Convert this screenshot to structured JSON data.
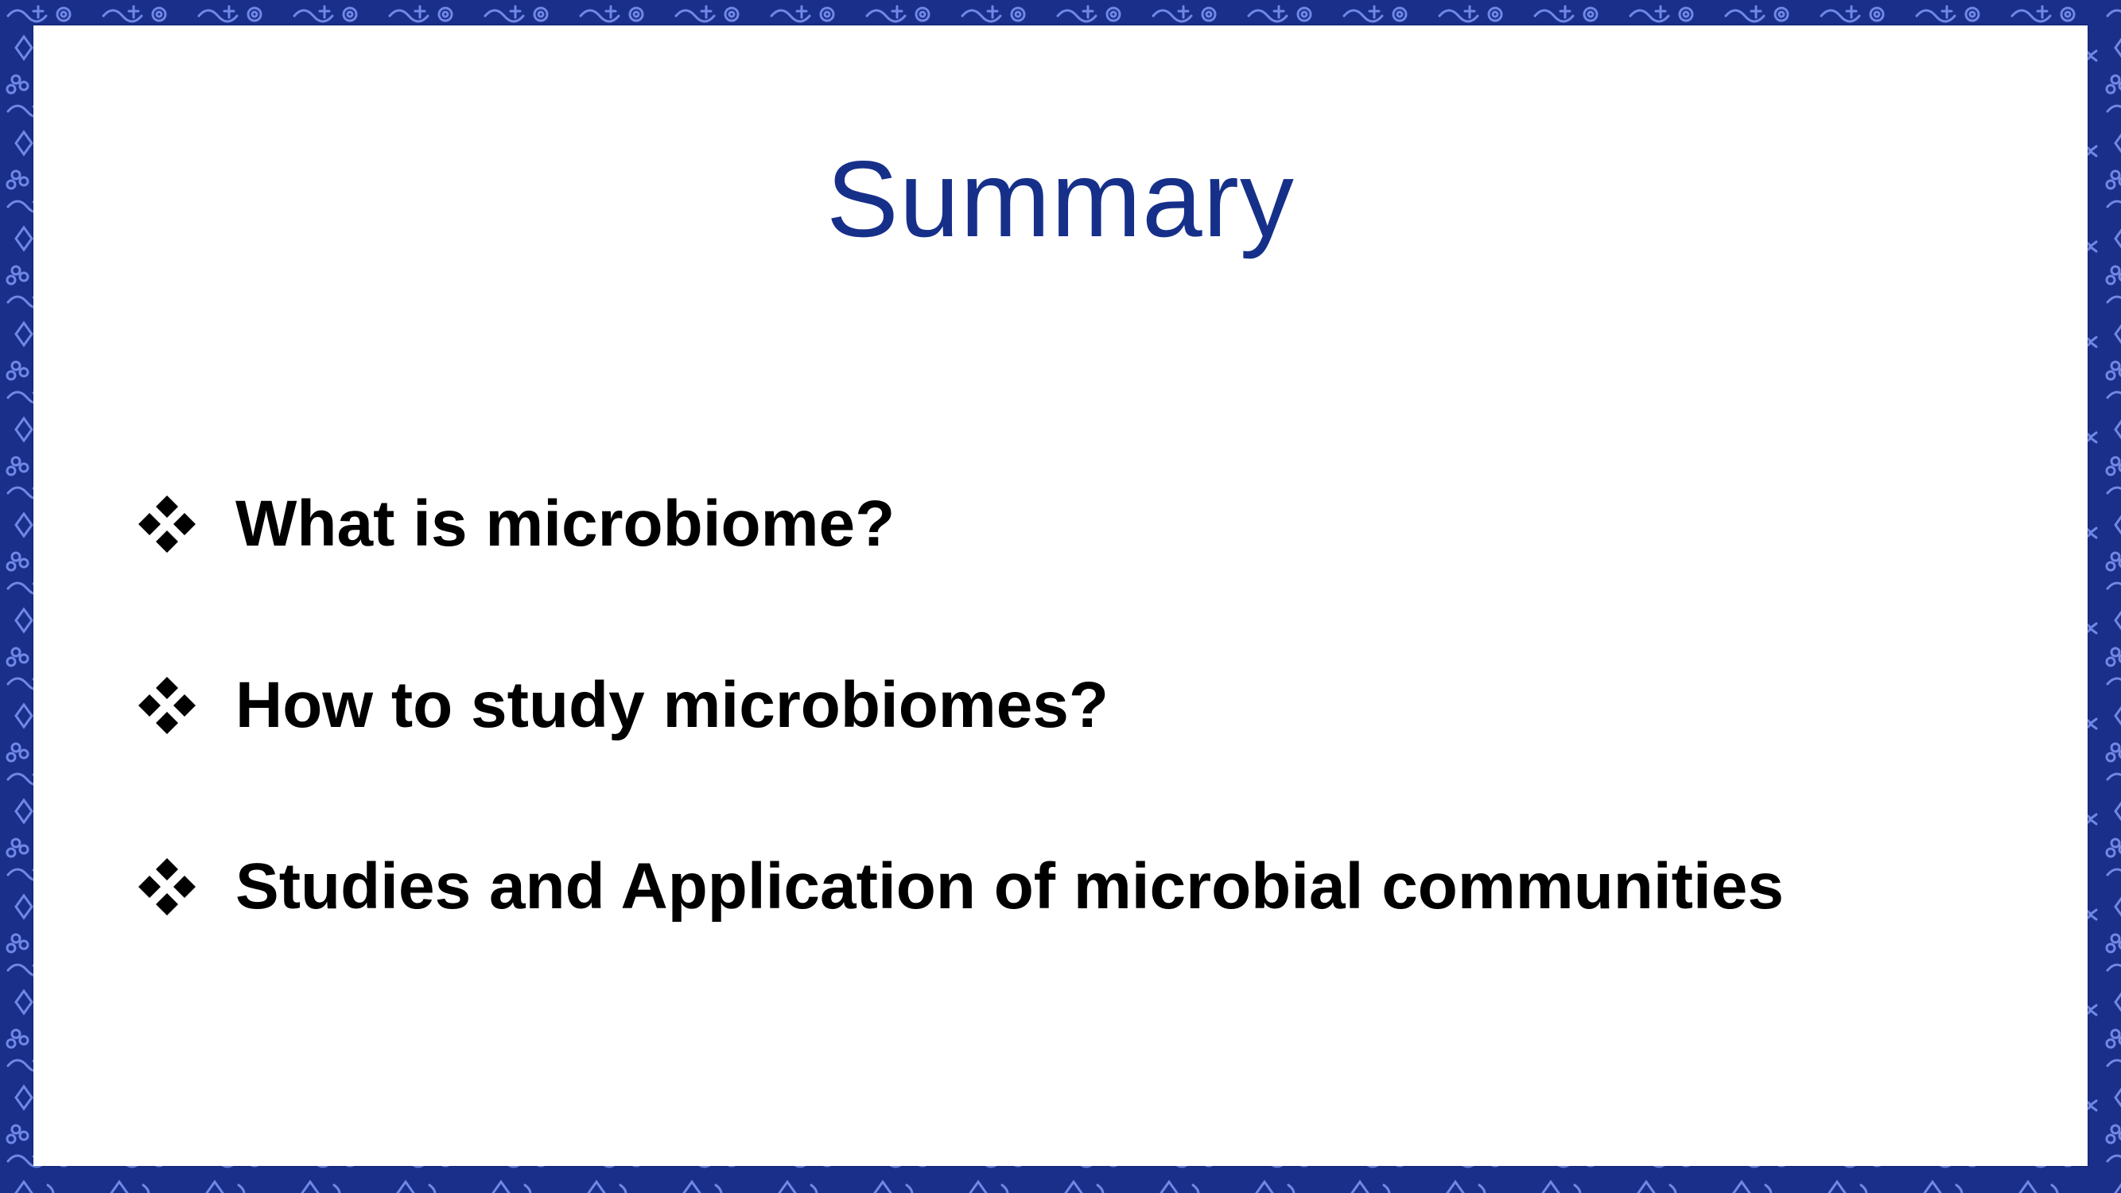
{
  "slide": {
    "title": "Summary",
    "bullets": [
      {
        "icon": "diamond-cluster-icon",
        "text": "What is microbiome?"
      },
      {
        "icon": "diamond-cluster-icon",
        "text": "How to study microbiomes?"
      },
      {
        "icon": "diamond-cluster-icon",
        "text": "Studies and Application of microbial communities"
      }
    ]
  },
  "colors": {
    "border_background": "#1a2f8a",
    "border_pattern": "#6f87e6",
    "title": "#16308a",
    "bullet_text": "#000000",
    "slide_background": "#ffffff"
  }
}
